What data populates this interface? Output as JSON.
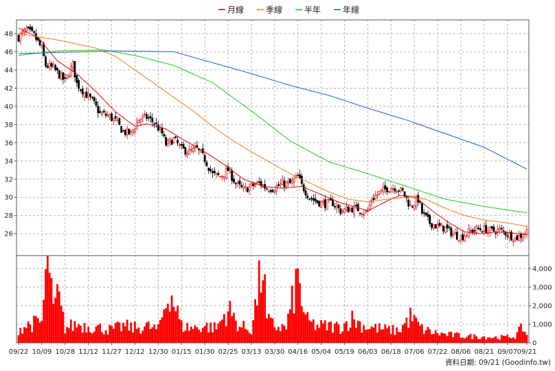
{
  "chart_data": {
    "type": "candlestick",
    "legend_placement": "top-center",
    "legend": [
      {
        "key": "ma20",
        "label": "月線",
        "color": "#e00000"
      },
      {
        "key": "ma60",
        "label": "季線",
        "color": "#f07818"
      },
      {
        "key": "ma120",
        "label": "半年",
        "color": "#18c818"
      },
      {
        "key": "ma240",
        "label": "年線",
        "color": "#1860c8"
      }
    ],
    "price_axis": {
      "ylim": [
        23.6,
        49.5
      ],
      "ticks": [
        "26",
        "28",
        "30",
        "32",
        "34",
        "36",
        "38",
        "40",
        "42",
        "44",
        "46",
        "48"
      ],
      "tick_values": [
        26,
        28,
        30,
        32,
        34,
        36,
        38,
        40,
        42,
        44,
        46,
        48
      ],
      "side": "left"
    },
    "volume_axis": {
      "ylim": [
        0,
        4700
      ],
      "ticks": [
        "0",
        "1,000",
        "2,000",
        "3,000",
        "4,000"
      ],
      "tick_values": [
        0,
        1000,
        2000,
        3000,
        4000
      ],
      "side": "right"
    },
    "x_ticks": [
      "09/22",
      "10/09",
      "10/28",
      "11/12",
      "11/27",
      "12/12",
      "12/30",
      "01/15",
      "01/30",
      "02/25",
      "03/13",
      "03/30",
      "04/16",
      "05/04",
      "05/19",
      "06/03",
      "06/18",
      "07/06",
      "07/22",
      "08/06",
      "08/21",
      "09/07",
      "09/21"
    ],
    "x_tick_bars": [
      0,
      12,
      24,
      36,
      48,
      60,
      72,
      84,
      96,
      108,
      120,
      132,
      144,
      156,
      168,
      180,
      192,
      204,
      216,
      228,
      240,
      252,
      262
    ],
    "bar_count": 263,
    "grid": true,
    "colors": {
      "up": "#e00000",
      "down": "#000000",
      "volume": "#ff0000",
      "grid": "#a0a0a0",
      "frame": "#555555"
    },
    "close_keypoints": [
      [
        0,
        47.6
      ],
      [
        4,
        48.4
      ],
      [
        8,
        47.8
      ],
      [
        12,
        46.3
      ],
      [
        14,
        44.5
      ],
      [
        18,
        44.2
      ],
      [
        22,
        43.2
      ],
      [
        24,
        42.8
      ],
      [
        28,
        44.6
      ],
      [
        30,
        42.5
      ],
      [
        34,
        41.5
      ],
      [
        38,
        40.6
      ],
      [
        42,
        39.2
      ],
      [
        46,
        39.0
      ],
      [
        50,
        38.4
      ],
      [
        54,
        37.2
      ],
      [
        58,
        37.0
      ],
      [
        62,
        38.6
      ],
      [
        66,
        38.8
      ],
      [
        70,
        38.2
      ],
      [
        74,
        37.0
      ],
      [
        76,
        35.8
      ],
      [
        80,
        36.4
      ],
      [
        84,
        35.3
      ],
      [
        88,
        35.0
      ],
      [
        92,
        35.3
      ],
      [
        96,
        34.2
      ],
      [
        100,
        32.5
      ],
      [
        104,
        32.3
      ],
      [
        108,
        33.0
      ],
      [
        112,
        31.5
      ],
      [
        116,
        30.8
      ],
      [
        120,
        31.2
      ],
      [
        124,
        31.6
      ],
      [
        128,
        31.0
      ],
      [
        132,
        31.0
      ],
      [
        136,
        31.5
      ],
      [
        140,
        31.5
      ],
      [
        144,
        32.3
      ],
      [
        146,
        31.3
      ],
      [
        150,
        30.0
      ],
      [
        154,
        29.5
      ],
      [
        158,
        29.3
      ],
      [
        162,
        29.4
      ],
      [
        166,
        28.5
      ],
      [
        170,
        28.7
      ],
      [
        174,
        28.8
      ],
      [
        178,
        28.4
      ],
      [
        180,
        28.5
      ],
      [
        182,
        29.8
      ],
      [
        186,
        30.5
      ],
      [
        190,
        31.0
      ],
      [
        194,
        31.1
      ],
      [
        198,
        30.6
      ],
      [
        202,
        29.0
      ],
      [
        206,
        29.8
      ],
      [
        208,
        28.3
      ],
      [
        212,
        27.2
      ],
      [
        216,
        26.8
      ],
      [
        220,
        26.6
      ],
      [
        224,
        26.0
      ],
      [
        228,
        25.6
      ],
      [
        232,
        26.2
      ],
      [
        236,
        26.5
      ],
      [
        240,
        26.5
      ],
      [
        244,
        26.3
      ],
      [
        248,
        26.4
      ],
      [
        252,
        26.0
      ],
      [
        256,
        25.5
      ],
      [
        260,
        25.9
      ],
      [
        262,
        26.3
      ]
    ],
    "ma240_keypoints": [
      [
        0,
        45.8
      ],
      [
        50,
        46.1
      ],
      [
        80,
        46.0
      ],
      [
        100,
        44.8
      ],
      [
        120,
        43.6
      ],
      [
        140,
        42.3
      ],
      [
        160,
        41.2
      ],
      [
        180,
        39.8
      ],
      [
        200,
        38.5
      ],
      [
        220,
        37.0
      ],
      [
        240,
        35.5
      ],
      [
        262,
        33.1
      ]
    ],
    "ma120_keypoints": [
      [
        0,
        45.6
      ],
      [
        20,
        46.1
      ],
      [
        44,
        46.2
      ],
      [
        60,
        45.6
      ],
      [
        80,
        44.5
      ],
      [
        100,
        42.6
      ],
      [
        120,
        39.5
      ],
      [
        140,
        36.2
      ],
      [
        160,
        33.9
      ],
      [
        180,
        32.6
      ],
      [
        200,
        31.2
      ],
      [
        220,
        29.8
      ],
      [
        240,
        29.0
      ],
      [
        262,
        28.3
      ]
    ],
    "ma60_keypoints": [
      [
        0,
        48.0
      ],
      [
        20,
        47.3
      ],
      [
        40,
        46.4
      ],
      [
        50,
        45.5
      ],
      [
        60,
        44.0
      ],
      [
        70,
        42.5
      ],
      [
        80,
        41.0
      ],
      [
        90,
        39.5
      ],
      [
        100,
        37.8
      ],
      [
        110,
        36.3
      ],
      [
        120,
        35.0
      ],
      [
        130,
        33.8
      ],
      [
        140,
        32.6
      ],
      [
        150,
        31.6
      ],
      [
        160,
        30.6
      ],
      [
        170,
        29.8
      ],
      [
        180,
        29.5
      ],
      [
        190,
        29.8
      ],
      [
        200,
        30.0
      ],
      [
        210,
        29.8
      ],
      [
        220,
        28.8
      ],
      [
        230,
        28.0
      ],
      [
        240,
        27.5
      ],
      [
        252,
        27.2
      ],
      [
        262,
        26.8
      ]
    ],
    "ma20_keypoints": [
      [
        0,
        48.6
      ],
      [
        10,
        47.6
      ],
      [
        20,
        45.0
      ],
      [
        30,
        43.6
      ],
      [
        40,
        41.6
      ],
      [
        50,
        39.4
      ],
      [
        60,
        37.8
      ],
      [
        66,
        38.1
      ],
      [
        76,
        37.5
      ],
      [
        86,
        36.2
      ],
      [
        96,
        35.0
      ],
      [
        106,
        33.6
      ],
      [
        116,
        32.0
      ],
      [
        126,
        31.2
      ],
      [
        136,
        31.0
      ],
      [
        146,
        31.2
      ],
      [
        156,
        30.3
      ],
      [
        166,
        29.4
      ],
      [
        176,
        28.8
      ],
      [
        180,
        28.5
      ],
      [
        190,
        29.6
      ],
      [
        196,
        30.2
      ],
      [
        204,
        30.1
      ],
      [
        214,
        28.4
      ],
      [
        222,
        27.2
      ],
      [
        230,
        26.2
      ],
      [
        238,
        26.0
      ],
      [
        246,
        26.2
      ],
      [
        254,
        26.1
      ],
      [
        262,
        25.9
      ]
    ],
    "volume_keypoints": [
      [
        0,
        750
      ],
      [
        6,
        1000
      ],
      [
        12,
        1100
      ],
      [
        14,
        3400
      ],
      [
        16,
        4500
      ],
      [
        18,
        1500
      ],
      [
        20,
        2600
      ],
      [
        24,
        800
      ],
      [
        30,
        1000
      ],
      [
        36,
        900
      ],
      [
        42,
        800
      ],
      [
        48,
        700
      ],
      [
        54,
        900
      ],
      [
        60,
        800
      ],
      [
        66,
        900
      ],
      [
        72,
        700
      ],
      [
        78,
        2900
      ],
      [
        84,
        900
      ],
      [
        90,
        800
      ],
      [
        96,
        900
      ],
      [
        102,
        800
      ],
      [
        108,
        1800
      ],
      [
        114,
        900
      ],
      [
        120,
        700
      ],
      [
        126,
        4300
      ],
      [
        128,
        1200
      ],
      [
        132,
        900
      ],
      [
        138,
        800
      ],
      [
        144,
        3500
      ],
      [
        148,
        1200
      ],
      [
        154,
        900
      ],
      [
        160,
        900
      ],
      [
        166,
        850
      ],
      [
        172,
        1300
      ],
      [
        178,
        900
      ],
      [
        184,
        800
      ],
      [
        190,
        700
      ],
      [
        196,
        650
      ],
      [
        202,
        1400
      ],
      [
        208,
        750
      ],
      [
        214,
        550
      ],
      [
        220,
        450
      ],
      [
        226,
        400
      ],
      [
        232,
        350
      ],
      [
        238,
        350
      ],
      [
        244,
        300
      ],
      [
        250,
        300
      ],
      [
        256,
        350
      ],
      [
        260,
        850
      ],
      [
        262,
        400
      ]
    ]
  },
  "footer": {
    "text": "資料日期: 09/21  (Goodinfo.tw)"
  }
}
